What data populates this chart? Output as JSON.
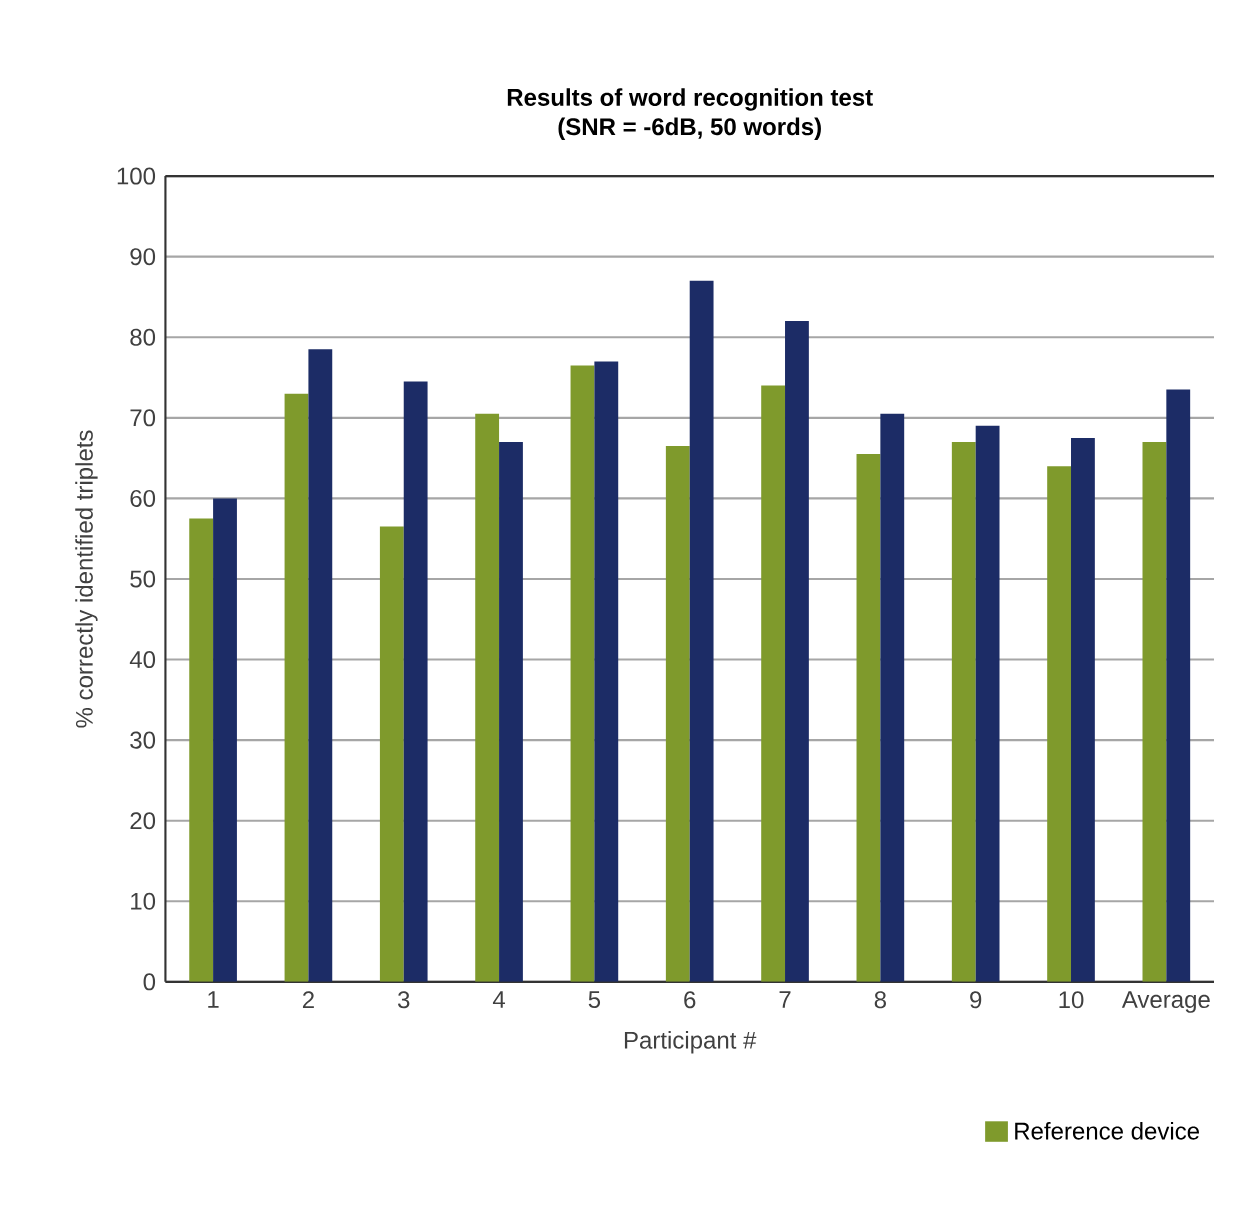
{
  "chart_data": {
    "type": "bar",
    "title": "Results of word recognition test",
    "subtitle": "(SNR = -6dB, 50 words)",
    "xlabel": "Participant #",
    "ylabel": "% correctly identified triplets",
    "categories": [
      "1",
      "2",
      "3",
      "4",
      "5",
      "6",
      "7",
      "8",
      "9",
      "10",
      "Average"
    ],
    "series": [
      {
        "name": "Reference device",
        "color": "#7f9a2c",
        "values": [
          57.5,
          73,
          56.5,
          70.5,
          76.5,
          66.5,
          74,
          65.5,
          67,
          64,
          67
        ]
      },
      {
        "color": "#1c2c66",
        "values": [
          60,
          78.5,
          74.5,
          67,
          77,
          87,
          82,
          70.5,
          69,
          67.5,
          73.5
        ]
      }
    ],
    "ylim": [
      0,
      100
    ],
    "yticks": [
      0,
      10,
      20,
      30,
      40,
      50,
      60,
      70,
      80,
      90,
      100
    ],
    "grid": "y",
    "legend": "bottom right"
  }
}
